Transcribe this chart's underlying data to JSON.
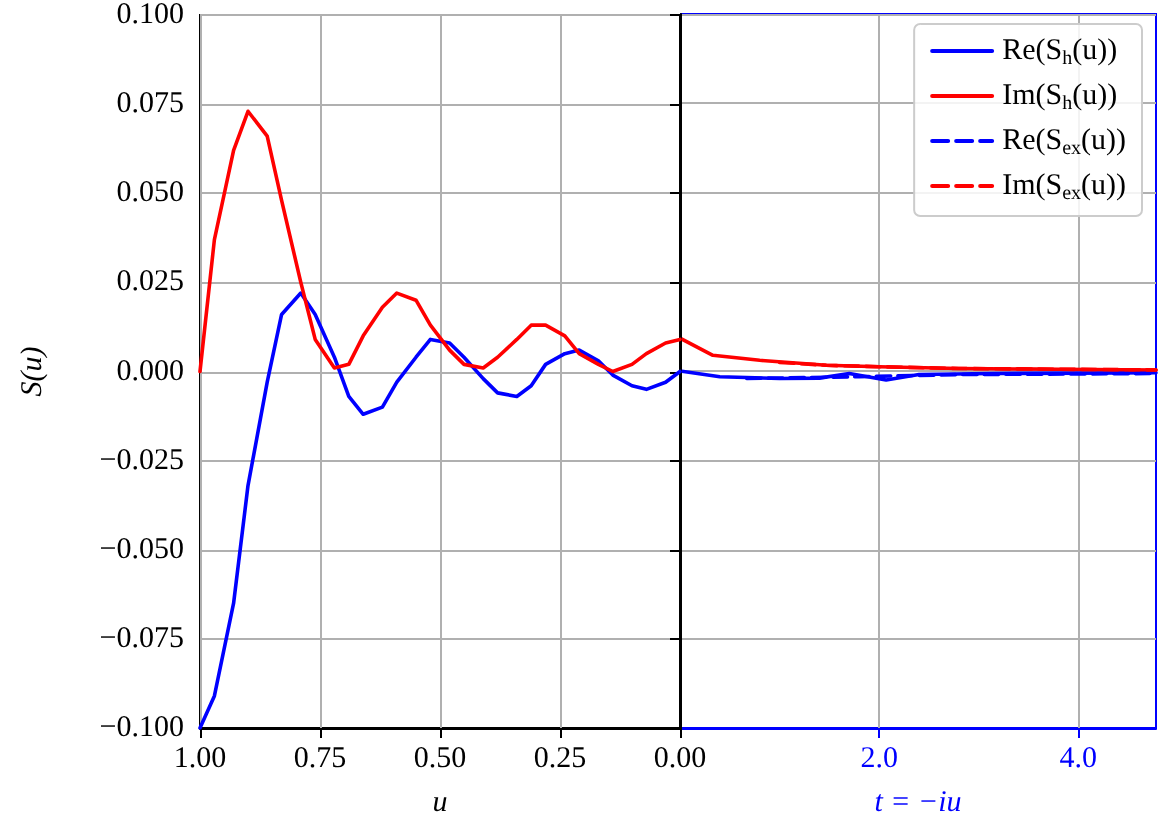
{
  "chart_data": [
    {
      "type": "line",
      "xlabel": "u",
      "ylabel": "S(u)",
      "xlim": [
        1,
        0
      ],
      "xticks": [
        {
          "value": 1,
          "label": "1.00"
        },
        {
          "value": 0.75,
          "label": "0.75"
        },
        {
          "value": 0.5,
          "label": "0.50"
        },
        {
          "value": 0.25,
          "label": "0.25"
        },
        {
          "value": 0,
          "label": "0.00"
        }
      ],
      "ylim": [
        -0.1,
        0.1
      ],
      "yticks": [
        {
          "value": -0.1,
          "label": "−0.100"
        },
        {
          "value": -0.075,
          "label": "−0.075"
        },
        {
          "value": -0.05,
          "label": "−0.050"
        },
        {
          "value": -0.025,
          "label": "−0.025"
        },
        {
          "value": 0,
          "label": "0.000"
        },
        {
          "value": 0.025,
          "label": "0.025"
        },
        {
          "value": 0.05,
          "label": "0.050"
        },
        {
          "value": 0.075,
          "label": "0.075"
        },
        {
          "value": 0.1,
          "label": "0.100"
        }
      ],
      "grid": true,
      "marker": "none",
      "x": [
        1.0,
        0.97,
        0.93,
        0.9,
        0.86,
        0.83,
        0.79,
        0.76,
        0.72,
        0.69,
        0.66,
        0.62,
        0.59,
        0.55,
        0.52,
        0.48,
        0.45,
        0.41,
        0.38,
        0.34,
        0.31,
        0.28,
        0.24,
        0.21,
        0.17,
        0.14,
        0.1,
        0.07,
        0.03,
        0
      ],
      "series": [
        {
          "color": "#0000ff",
          "line_style": "solid",
          "values": [
            -0.1,
            -0.091,
            -0.065,
            -0.032,
            -0.003,
            0.016,
            0.022,
            0.016,
            0.004,
            -0.007,
            -0.012,
            -0.01,
            -0.003,
            0.004,
            0.009,
            0.008,
            0.004,
            -0.002,
            -0.006,
            -0.007,
            -0.004,
            0.002,
            0.005,
            0.006,
            0.003,
            -0.001,
            -0.004,
            -0.005,
            -0.003,
            0
          ]
        },
        {
          "color": "#ff0000",
          "line_style": "solid",
          "values": [
            0,
            0.037,
            0.062,
            0.073,
            0.066,
            0.048,
            0.025,
            0.009,
            0.001,
            0.002,
            0.01,
            0.018,
            0.022,
            0.02,
            0.013,
            0.006,
            0.002,
            0.001,
            0.004,
            0.009,
            0.013,
            0.013,
            0.01,
            0.005,
            0.002,
            0,
            0.002,
            0.005,
            0.008,
            0.009
          ]
        }
      ]
    },
    {
      "type": "line",
      "xlabel": "t = −iu",
      "xlim": [
        0,
        4.78
      ],
      "xticks": [
        {
          "value": 2,
          "label": "2.0"
        },
        {
          "value": 4,
          "label": "4.0"
        }
      ],
      "ylim": [
        -0.1,
        0.1
      ],
      "yticks": [
        -0.1,
        -0.075,
        -0.05,
        -0.025,
        0,
        0.025,
        0.05,
        0.075,
        0.1
      ],
      "tick_labels": "x",
      "grid": true,
      "marker": "none",
      "legend": "top right",
      "series": [
        {
          "name": "Re(S$_{h}$(u))",
          "color": "#0000ff",
          "line_style": "solid",
          "x": [
            0,
            0.4,
            1.0,
            1.4,
            1.7,
            2.07,
            2.4,
            3.13,
            4.0,
            4.78
          ],
          "values": [
            0,
            -0.0016,
            -0.0021,
            -0.002,
            -0.0007,
            -0.0025,
            -0.001,
            -0.0007,
            -0.0006,
            -0.0005
          ]
        },
        {
          "name": "Im(S$_{h}$(u))",
          "color": "#ff0000",
          "line_style": "solid",
          "x": [
            0,
            0.33,
            0.8,
            1.47,
            2.0,
            2.8,
            3.8,
            4.78
          ],
          "values": [
            0.0092,
            0.0044,
            0.003,
            0.0016,
            0.0012,
            0.0007,
            0.0005,
            0.0003
          ]
        },
        {
          "name": "Re(S$_{ex}$(u))",
          "color": "#0000ff",
          "line_style": "dashed",
          "x": [
            0.67,
            1.8,
            2.8,
            4.78
          ],
          "values": [
            -0.0021,
            -0.0016,
            -0.001,
            -0.0007
          ]
        },
        {
          "name": "Im(S$_{ex}$(u))",
          "color": "#ff0000",
          "line_style": "dashed",
          "x": [
            1.0,
            1.47,
            2.0,
            2.8,
            3.8,
            4.78
          ],
          "values": [
            0.0024,
            0.0016,
            0.0012,
            0.0007,
            0.0005,
            0.0003
          ]
        }
      ]
    }
  ]
}
